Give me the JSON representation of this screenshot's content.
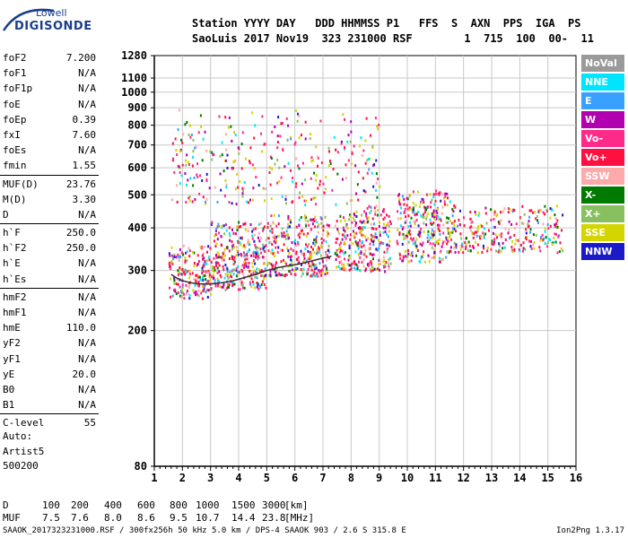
{
  "brand": {
    "line1": "Lowell",
    "line2": "DIGISONDE"
  },
  "header": {
    "labels": "Station YYYY DAY   DDD HHMMSS P1   FFS  S  AXN  PPS  IGA  PS",
    "values": "SaoLuis 2017 Nov19  323 231000 RSF        1  715  100  00-  11"
  },
  "params_a": [
    {
      "name": "foF2",
      "value": "7.200"
    },
    {
      "name": "foF1",
      "value": "N/A"
    },
    {
      "name": "foF1p",
      "value": "N/A"
    },
    {
      "name": "foE",
      "value": "N/A"
    },
    {
      "name": "foEp",
      "value": "0.39"
    },
    {
      "name": "fxI",
      "value": "7.60"
    },
    {
      "name": "foEs",
      "value": "N/A"
    },
    {
      "name": "fmin",
      "value": "1.55"
    }
  ],
  "params_b": [
    {
      "name": "MUF(D)",
      "value": "23.76"
    },
    {
      "name": "M(D)",
      "value": "3.30"
    },
    {
      "name": "D",
      "value": "N/A"
    }
  ],
  "params_c": [
    {
      "name": "h`F",
      "value": "250.0"
    },
    {
      "name": "h`F2",
      "value": "250.0"
    },
    {
      "name": "h`E",
      "value": "N/A"
    },
    {
      "name": "h`Es",
      "value": "N/A"
    }
  ],
  "params_d": [
    {
      "name": "hmF2",
      "value": "N/A"
    },
    {
      "name": "hmF1",
      "value": "N/A"
    },
    {
      "name": "hmE",
      "value": "110.0"
    },
    {
      "name": "yF2",
      "value": "N/A"
    },
    {
      "name": "yF1",
      "value": "N/A"
    },
    {
      "name": "yE",
      "value": "20.0"
    },
    {
      "name": "B0",
      "value": "N/A"
    },
    {
      "name": "B1",
      "value": "N/A"
    }
  ],
  "params_e": [
    {
      "name": "C-level",
      "value": "55"
    }
  ],
  "auto": {
    "line1": "Auto:",
    "line2": "Artist5",
    "line3": "500200"
  },
  "legend": [
    {
      "label": "NoVal",
      "color": "#9a9a9a"
    },
    {
      "label": "NNE",
      "color": "#00e5ff"
    },
    {
      "label": "E",
      "color": "#3aa0ff"
    },
    {
      "label": "W",
      "color": "#b000b0"
    },
    {
      "label": "Vo-",
      "color": "#ff2a8a"
    },
    {
      "label": "Vo+",
      "color": "#ff1040"
    },
    {
      "label": "SSW",
      "color": "#ffaaaa"
    },
    {
      "label": "X-",
      "color": "#007a00"
    },
    {
      "label": "X+",
      "color": "#88c060"
    },
    {
      "label": "SSE",
      "color": "#d4d400"
    },
    {
      "label": "NNW",
      "color": "#1a1ac8"
    }
  ],
  "muf_table": {
    "d_label": "D",
    "d_values": [
      "100",
      "200",
      "400",
      "600",
      "800",
      "1000",
      "1500",
      "3000"
    ],
    "d_unit": "[km]",
    "muf_label": "MUF",
    "muf_values": [
      "7.5",
      "7.6",
      "8.0",
      "8.6",
      "9.5",
      "10.7",
      "14.4",
      "23.8"
    ],
    "muf_unit": "[MHz]"
  },
  "footer": "SAAOK_2017323231000.RSF / 300fx256h 50 kHz 5.0 km / DPS-4 SAAOK 903 / 2.6 S 315.8 E",
  "version": "Ion2Png 1.3.17",
  "chart_data": {
    "type": "scatter",
    "title": "",
    "xlabel": "",
    "ylabel": "",
    "x_ticks": [
      1,
      2,
      3,
      4,
      5,
      6,
      7,
      8,
      9,
      10,
      11,
      12,
      13,
      14,
      15,
      16
    ],
    "y_ticks": [
      80,
      200,
      300,
      400,
      500,
      600,
      700,
      800,
      900,
      1000,
      1100,
      1280
    ],
    "xlim": [
      1,
      16
    ],
    "ylim": [
      80,
      1280
    ],
    "y_scale": "log",
    "grid": true,
    "trace": {
      "name": "",
      "x": [
        1.6,
        1.8,
        2.0,
        2.3,
        2.6,
        3.0,
        3.4,
        3.8,
        4.2,
        4.6,
        5.0,
        5.4,
        5.8,
        6.2,
        6.6,
        7.0,
        7.3
      ],
      "y": [
        292,
        285,
        280,
        276,
        274,
        274,
        276,
        280,
        286,
        292,
        300,
        306,
        310,
        314,
        320,
        326,
        330
      ]
    },
    "echo_bands": [
      {
        "x": [
          1.5,
          3.0
        ],
        "y": [
          250,
          360
        ],
        "density": 1.0
      },
      {
        "x": [
          3.0,
          5.0
        ],
        "y": [
          265,
          420
        ],
        "density": 0.95
      },
      {
        "x": [
          5.0,
          7.2
        ],
        "y": [
          290,
          440
        ],
        "density": 0.9
      },
      {
        "x": [
          7.4,
          9.4
        ],
        "y": [
          300,
          470
        ],
        "density": 0.85
      },
      {
        "x": [
          9.6,
          11.5
        ],
        "y": [
          320,
          520
        ],
        "density": 0.8
      },
      {
        "x": [
          11.5,
          15.5
        ],
        "y": [
          340,
          470
        ],
        "density": 0.55
      },
      {
        "x": [
          1.6,
          9.0
        ],
        "y": [
          470,
          900
        ],
        "density": 0.18
      }
    ]
  }
}
